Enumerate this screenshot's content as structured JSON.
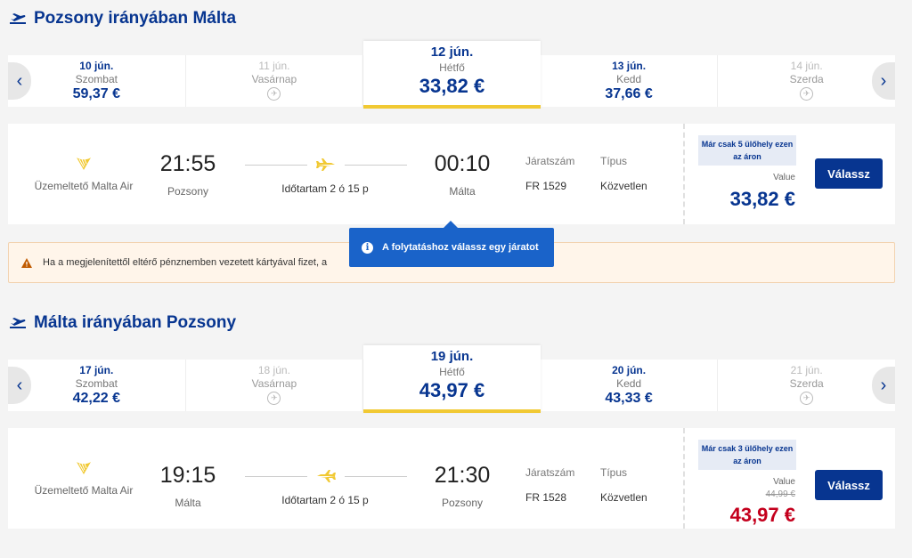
{
  "outbound": {
    "title": "Pozsony irányában Málta",
    "dates": [
      {
        "date": "10 jún.",
        "weekday": "Szombat",
        "price": "59,37 €",
        "available": true
      },
      {
        "date": "11 jún.",
        "weekday": "Vasárnap",
        "price": "",
        "available": false
      },
      {
        "date": "12 jún.",
        "weekday": "Hétfő",
        "price": "33,82 €",
        "available": true,
        "selected": true
      },
      {
        "date": "13 jún.",
        "weekday": "Kedd",
        "price": "37,66 €",
        "available": true
      },
      {
        "date": "14 jún.",
        "weekday": "Szerda",
        "price": "",
        "available": false
      }
    ],
    "flight": {
      "operator": "Üzemeltető Malta Air",
      "dep_time": "21:55",
      "dep_city": "Pozsony",
      "arr_time": "00:10",
      "arr_city": "Málta",
      "duration": "Időtartam 2 ó 15 p",
      "flight_no_label": "Járatszám",
      "flight_no": "FR 1529",
      "type_label": "Típus",
      "type": "Közvetlen",
      "seats_notice": "Már csak 5 ülőhely ezen az áron",
      "fare_label": "Value",
      "price": "33,82 €",
      "select_label": "Válassz"
    }
  },
  "warning_text": "Ha a megjelenítettől eltérő pénznemben vezetett kártyával fizet, a",
  "tooltip_text": "A folytatáshoz válassz egy járatot",
  "inbound": {
    "title": "Málta irányában Pozsony",
    "dates": [
      {
        "date": "17 jún.",
        "weekday": "Szombat",
        "price": "42,22 €",
        "available": true
      },
      {
        "date": "18 jún.",
        "weekday": "Vasárnap",
        "price": "",
        "available": false
      },
      {
        "date": "19 jún.",
        "weekday": "Hétfő",
        "price": "43,97 €",
        "available": true,
        "selected": true
      },
      {
        "date": "20 jún.",
        "weekday": "Kedd",
        "price": "43,33 €",
        "available": true
      },
      {
        "date": "21 jún.",
        "weekday": "Szerda",
        "price": "",
        "available": false
      }
    ],
    "flight": {
      "operator": "Üzemeltető Malta Air",
      "dep_time": "19:15",
      "dep_city": "Málta",
      "arr_time": "21:30",
      "arr_city": "Pozsony",
      "duration": "Időtartam 2 ó 15 p",
      "flight_no_label": "Járatszám",
      "flight_no": "FR 1528",
      "type_label": "Típus",
      "type": "Közvetlen",
      "seats_notice": "Már csak 3 ülőhely ezen az áron",
      "fare_label": "Value",
      "old_price": "44,99 €",
      "price": "43,97 €",
      "select_label": "Válassz"
    }
  },
  "colors": {
    "brand": "#073590",
    "accent": "#f1c933",
    "sale": "#c4001d",
    "info": "#1a63c9"
  }
}
